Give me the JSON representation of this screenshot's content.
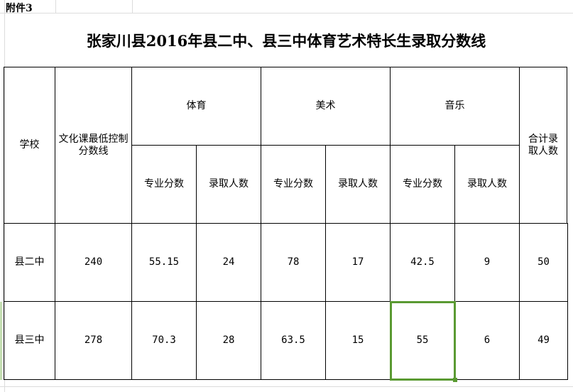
{
  "note": "附件3",
  "title": "张家川县2016年县二中、县三中体育艺术特长生录取分数线",
  "headers": {
    "school": "学校",
    "culture_min": "文化课最低控制分数线",
    "sports": "体育",
    "art": "美术",
    "music": "音乐",
    "total": "合计录取人数",
    "score": "专业分数",
    "admitted": "录取人数"
  },
  "rows": [
    {
      "school": "县二中",
      "culture_min": "240",
      "sports_score": "55.15",
      "sports_admitted": "24",
      "art_score": "78",
      "art_admitted": "17",
      "music_score": "42.5",
      "music_admitted": "9",
      "total": "50"
    },
    {
      "school": "县三中",
      "culture_min": "278",
      "sports_score": "70.3",
      "sports_admitted": "28",
      "art_score": "63.5",
      "art_admitted": "15",
      "music_score": "55",
      "music_admitted": "6",
      "total": "49"
    }
  ],
  "selection_color": "#5a9a32"
}
